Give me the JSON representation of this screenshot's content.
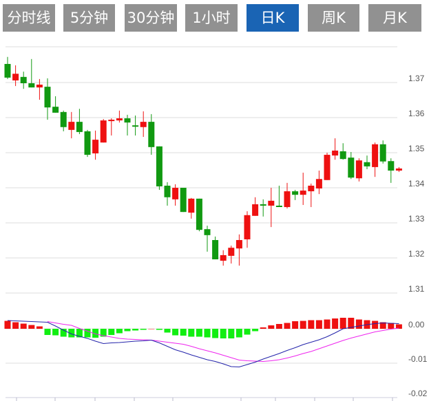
{
  "tabs": [
    {
      "label": "分时线",
      "active": false
    },
    {
      "label": "5分钟",
      "active": false
    },
    {
      "label": "30分钟",
      "active": false
    },
    {
      "label": "1小时",
      "active": false
    },
    {
      "label": "日K",
      "active": true
    },
    {
      "label": "周K",
      "active": false
    },
    {
      "label": "月K",
      "active": false
    }
  ],
  "colors": {
    "tab": "#919191",
    "tab_active": "#1a64b4",
    "up": "#ee1111",
    "down": "#119911",
    "hist_up": "#ee1111",
    "hist_down": "#11ee11",
    "dif": "#2222aa",
    "dea": "#ee22ee",
    "grid": "#dddddd"
  },
  "chart_data": [
    {
      "type": "candlestick",
      "ylim": [
        1.31,
        1.377
      ],
      "yticks": [
        "1.37",
        "1.36",
        "1.35",
        "1.34",
        "1.33",
        "1.32",
        "1.31"
      ],
      "ytick_values": [
        1.37,
        1.36,
        1.35,
        1.34,
        1.33,
        1.32,
        1.31
      ],
      "grid": true,
      "ohlc": [
        [
          1.3753,
          1.3773,
          1.371,
          1.3714
        ],
        [
          1.3706,
          1.3749,
          1.369,
          1.3725
        ],
        [
          1.3716,
          1.3731,
          1.3682,
          1.3698
        ],
        [
          1.3698,
          1.3767,
          1.3686,
          1.3686
        ],
        [
          1.3686,
          1.371,
          1.3651,
          1.3694
        ],
        [
          1.3688,
          1.3712,
          1.3594,
          1.3629
        ],
        [
          1.3631,
          1.3661,
          1.3614,
          1.3614
        ],
        [
          1.3616,
          1.362,
          1.3561,
          1.3573
        ],
        [
          1.3565,
          1.3616,
          1.3541,
          1.3588
        ],
        [
          1.3588,
          1.3625,
          1.3553,
          1.3559
        ],
        [
          1.3561,
          1.3565,
          1.3488,
          1.3494
        ],
        [
          1.3498,
          1.3563,
          1.348,
          1.3537
        ],
        [
          1.3529,
          1.3596,
          1.3529,
          1.3592
        ],
        [
          1.359,
          1.3598,
          1.3549,
          1.3594
        ],
        [
          1.3592,
          1.362,
          1.3586,
          1.3598
        ],
        [
          1.3598,
          1.3608,
          1.3549,
          1.3586
        ],
        [
          1.3578,
          1.3606,
          1.3549,
          1.3575
        ],
        [
          1.3573,
          1.3618,
          1.3545,
          1.3588
        ],
        [
          1.3588,
          1.361,
          1.3494,
          1.3516
        ],
        [
          1.3518,
          1.3518,
          1.3394,
          1.3404
        ],
        [
          1.3406,
          1.3416,
          1.3349,
          1.3373
        ],
        [
          1.3367,
          1.341,
          1.3349,
          1.34
        ],
        [
          1.34,
          1.34,
          1.3331,
          1.3331
        ],
        [
          1.3329,
          1.3371,
          1.3312,
          1.3369
        ],
        [
          1.3369,
          1.3369,
          1.3276,
          1.328
        ],
        [
          1.3282,
          1.3292,
          1.3218,
          1.3265
        ],
        [
          1.3251,
          1.3261,
          1.3196,
          1.3196
        ],
        [
          1.3192,
          1.3222,
          1.3178,
          1.3208
        ],
        [
          1.3206,
          1.3235,
          1.3184,
          1.3229
        ],
        [
          1.3227,
          1.3267,
          1.3178,
          1.3251
        ],
        [
          1.3253,
          1.3333,
          1.3229,
          1.3322
        ],
        [
          1.332,
          1.3373,
          1.332,
          1.3353
        ],
        [
          1.3353,
          1.3367,
          1.3318,
          1.3349
        ],
        [
          1.3349,
          1.34,
          1.3288,
          1.3363
        ],
        [
          1.3349,
          1.3406,
          1.3347,
          1.3347
        ],
        [
          1.3345,
          1.3414,
          1.3341,
          1.339
        ],
        [
          1.339,
          1.3394,
          1.3365,
          1.338
        ],
        [
          1.338,
          1.3443,
          1.3351,
          1.3392
        ],
        [
          1.339,
          1.3412,
          1.3345,
          1.3406
        ],
        [
          1.3398,
          1.3449,
          1.3382,
          1.3425
        ],
        [
          1.3422,
          1.35,
          1.3422,
          1.3494
        ],
        [
          1.3492,
          1.3541,
          1.348,
          1.3506
        ],
        [
          1.3504,
          1.3527,
          1.348,
          1.3482
        ],
        [
          1.3486,
          1.3502,
          1.3425,
          1.3429
        ],
        [
          1.3427,
          1.3484,
          1.3418,
          1.3478
        ],
        [
          1.3473,
          1.3492,
          1.3453,
          1.3461
        ],
        [
          1.3459,
          1.3529,
          1.3431,
          1.3524
        ],
        [
          1.3524,
          1.3535,
          1.3469,
          1.3475
        ],
        [
          1.3476,
          1.3484,
          1.3414,
          1.3449
        ],
        [
          1.3449,
          1.3459,
          1.3445,
          1.3455
        ]
      ]
    },
    {
      "type": "macd",
      "ylim": [
        -0.02,
        0.005
      ],
      "yticks": [
        "0.00",
        "-0.01",
        "-0.02"
      ],
      "ytick_values": [
        0,
        -0.01,
        -0.02
      ],
      "histogram": [
        0.0023,
        0.0019,
        0.0015,
        0.0011,
        0.0007,
        -0.0018,
        -0.0019,
        -0.0023,
        -0.0025,
        -0.0025,
        -0.0025,
        -0.0026,
        -0.0023,
        -0.0018,
        -0.0013,
        -0.0007,
        -0.0005,
        -0.0003,
        0,
        -0.0003,
        -0.0011,
        -0.0019,
        -0.002,
        -0.0023,
        -0.0023,
        -0.0025,
        -0.0027,
        -0.0028,
        -0.0028,
        -0.0025,
        -0.0017,
        -0.0007,
        0.0004,
        0.001,
        0.0014,
        0.0017,
        0.0022,
        0.0023,
        0.0025,
        0.0025,
        0.0027,
        0.003,
        0.0032,
        0.0032,
        0.0027,
        0.0025,
        0.0023,
        0.0019,
        0.0017,
        0.0013
      ],
      "dif": [
        0.0024,
        0.0023,
        0.0022,
        0.0021,
        0.002,
        0.0019,
        0.0008,
        -0.0004,
        -0.0015,
        -0.0022,
        -0.0028,
        -0.0036,
        -0.0043,
        -0.0041,
        -0.004,
        -0.0038,
        -0.0036,
        -0.0035,
        -0.0033,
        -0.0041,
        -0.0051,
        -0.0061,
        -0.0068,
        -0.0076,
        -0.0083,
        -0.009,
        -0.0095,
        -0.0102,
        -0.011,
        -0.0111,
        -0.0104,
        -0.0097,
        -0.0088,
        -0.008,
        -0.0072,
        -0.0063,
        -0.0055,
        -0.0046,
        -0.0039,
        -0.0032,
        -0.0023,
        -0.0012,
        0.0,
        0.0004,
        0.0008,
        0.0012,
        0.0015,
        0.0017,
        0.0016,
        0.0015
      ],
      "dea": [
        null,
        null,
        null,
        null,
        null,
        0.0021,
        0.0017,
        0.0013,
        0.001,
        0.0001,
        -0.0007,
        -0.0015,
        -0.002,
        -0.0024,
        -0.0028,
        -0.003,
        -0.0031,
        -0.0032,
        -0.0033,
        -0.0036,
        -0.0039,
        -0.0042,
        -0.0045,
        -0.0051,
        -0.0058,
        -0.0064,
        -0.007,
        -0.0077,
        -0.0084,
        -0.0091,
        -0.0093,
        -0.0094,
        -0.0095,
        -0.0093,
        -0.009,
        -0.0085,
        -0.0079,
        -0.0072,
        -0.0066,
        -0.0058,
        -0.005,
        -0.0042,
        -0.0034,
        -0.0027,
        -0.0021,
        -0.0015,
        -0.0009,
        -0.0005,
        -0.0001,
        0.0002
      ]
    }
  ]
}
